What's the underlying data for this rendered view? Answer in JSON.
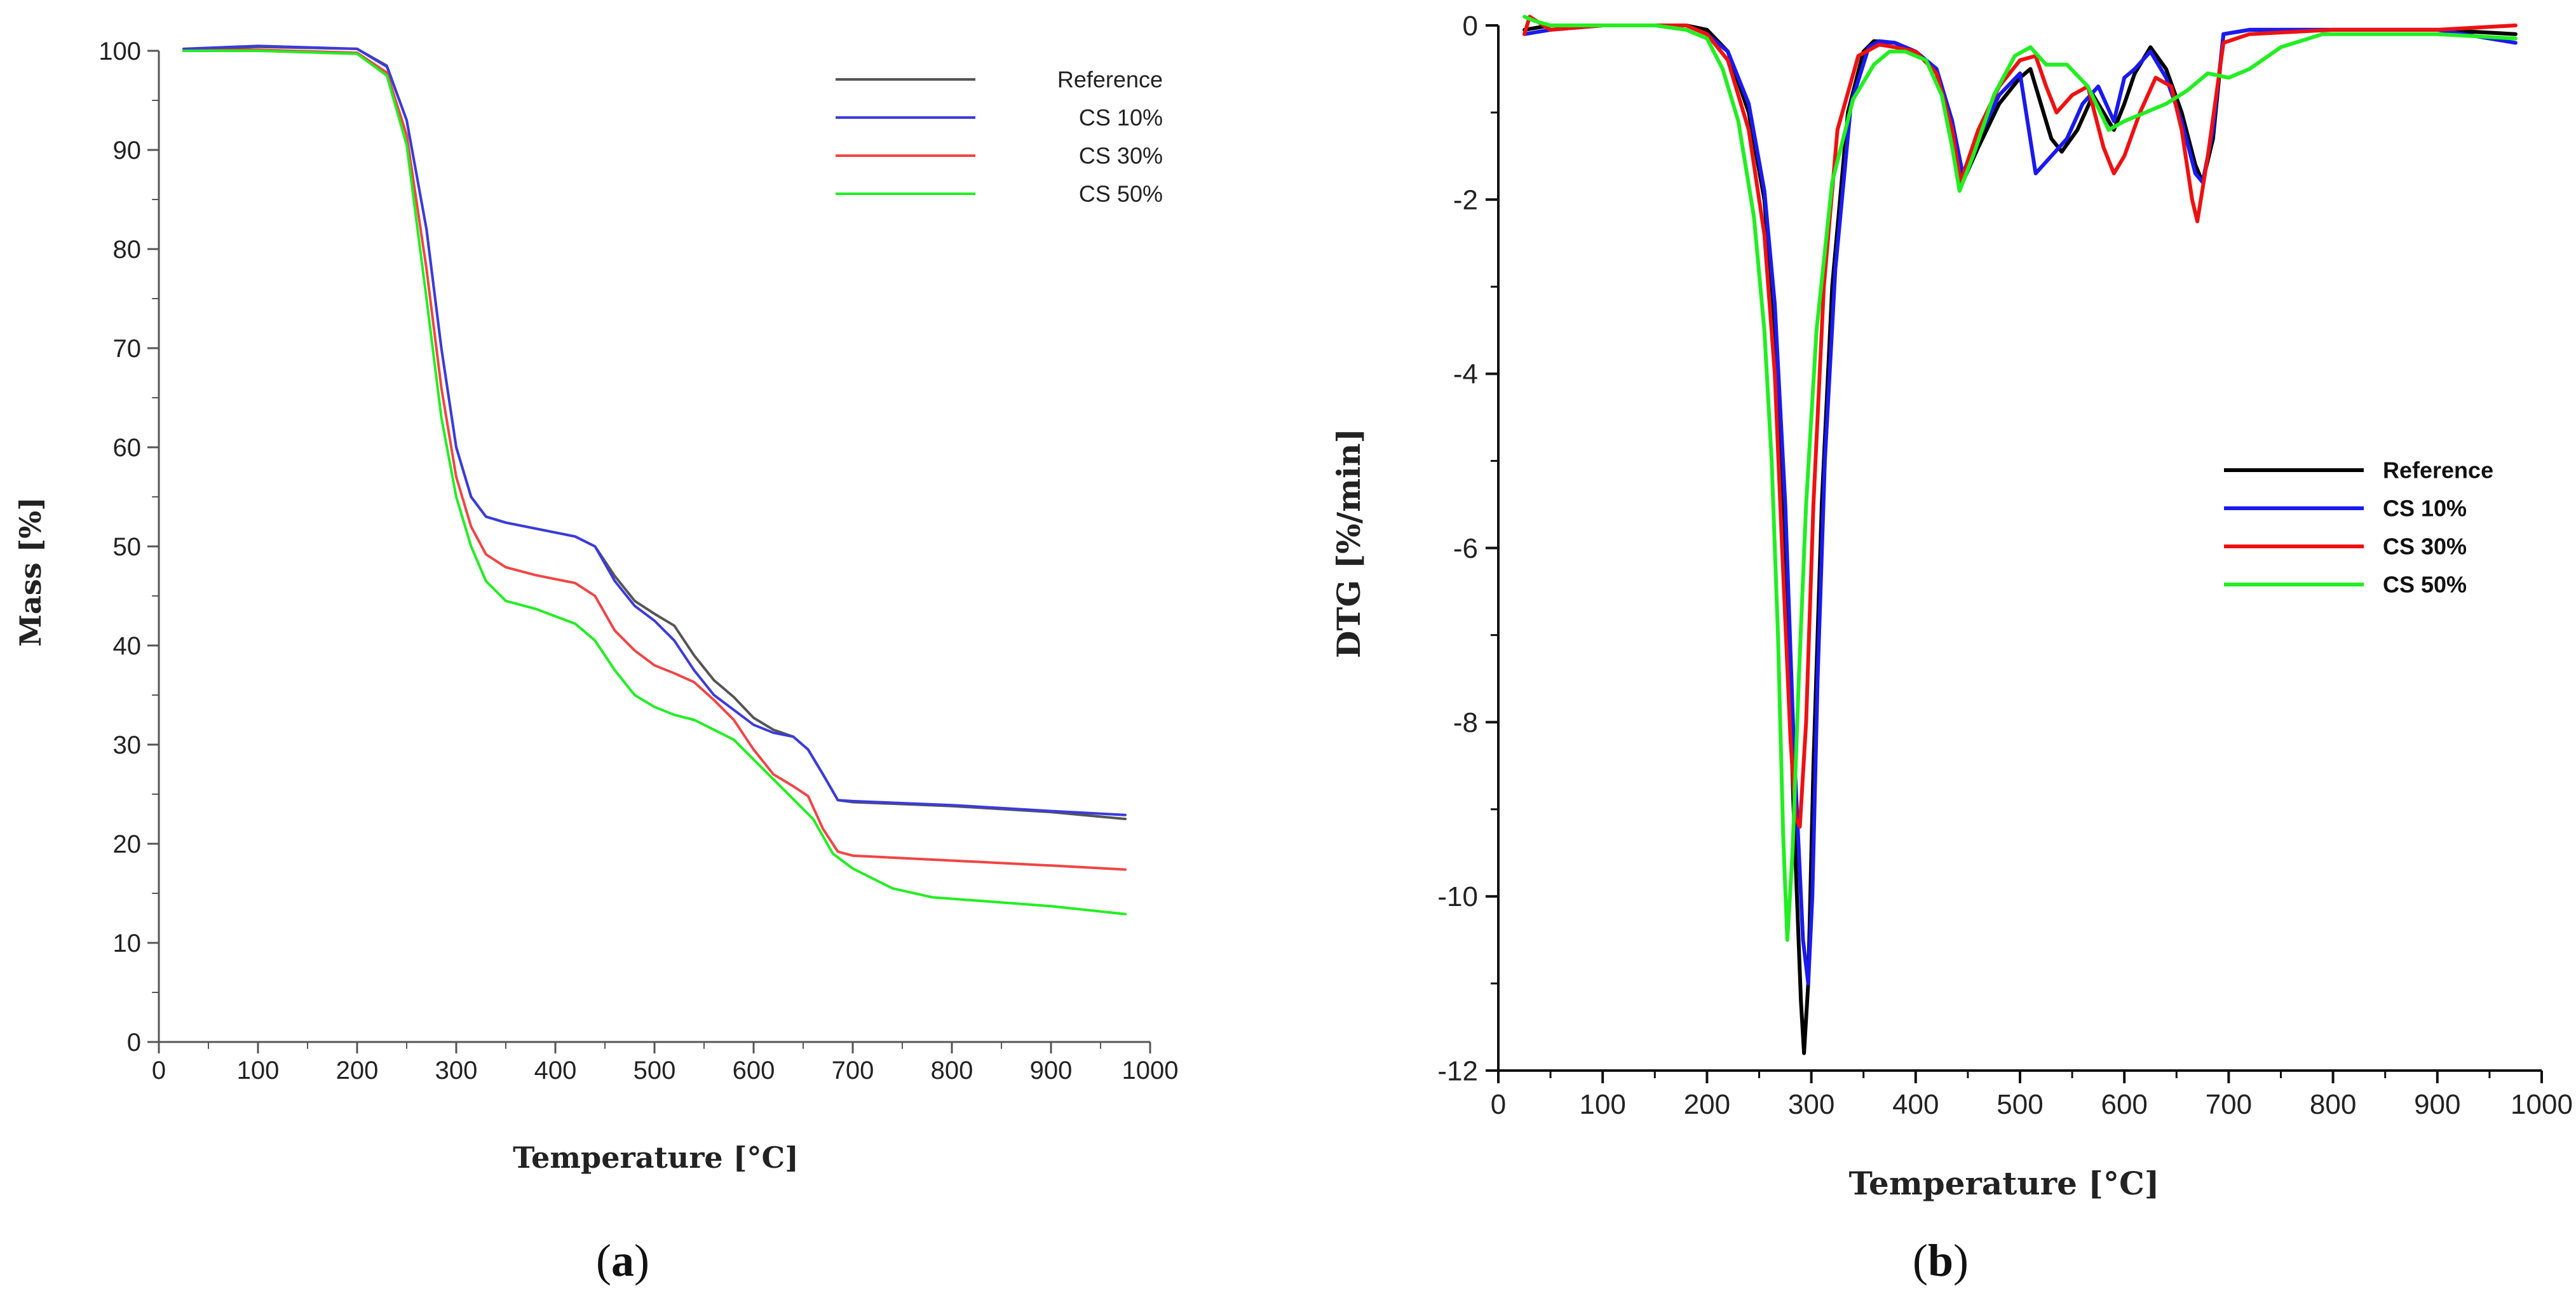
{
  "chart_data": [
    {
      "type": "line",
      "panel_label": "a",
      "xlabel": "Temperature [°C]",
      "ylabel": "Mass [%]",
      "xlim": [
        0,
        1000
      ],
      "ylim": [
        0,
        100
      ],
      "xticks": [
        0,
        100,
        200,
        300,
        400,
        500,
        600,
        700,
        800,
        900,
        1000
      ],
      "yticks": [
        0,
        10,
        20,
        30,
        40,
        50,
        60,
        70,
        80,
        90,
        100
      ],
      "legend_position": "top-right",
      "series": [
        {
          "name": "Reference",
          "color": "#555555",
          "x": [
            25,
            100,
            200,
            230,
            250,
            270,
            285,
            300,
            315,
            330,
            350,
            380,
            420,
            440,
            460,
            480,
            500,
            520,
            540,
            560,
            580,
            600,
            620,
            640,
            655,
            670,
            685,
            700,
            800,
            900,
            975
          ],
          "y": [
            100,
            100.4,
            100.2,
            98.5,
            93,
            82,
            70,
            60,
            55,
            53,
            52.4,
            51.8,
            51,
            50,
            47,
            44.5,
            43.2,
            42,
            39,
            36.5,
            34.8,
            32.7,
            31.5,
            30.8,
            29.5,
            27,
            24.4,
            24.2,
            23.8,
            23.2,
            22.5
          ]
        },
        {
          "name": "CS 10%",
          "color": "#3b3bdc",
          "x": [
            25,
            100,
            200,
            230,
            250,
            270,
            285,
            300,
            315,
            330,
            350,
            380,
            420,
            440,
            460,
            480,
            500,
            520,
            540,
            560,
            580,
            600,
            620,
            640,
            655,
            670,
            685,
            700,
            800,
            900,
            975
          ],
          "y": [
            100.2,
            100.5,
            100.2,
            98.4,
            93,
            82,
            70,
            60,
            55,
            53,
            52.4,
            51.8,
            51,
            50,
            46.5,
            44,
            42.5,
            40.5,
            37.5,
            35,
            33.5,
            32,
            31.2,
            30.8,
            29.5,
            27,
            24.4,
            24.3,
            23.9,
            23.3,
            22.9
          ]
        },
        {
          "name": "CS 30%",
          "color": "#f04545",
          "x": [
            25,
            100,
            200,
            230,
            250,
            270,
            285,
            300,
            315,
            330,
            350,
            380,
            420,
            440,
            460,
            480,
            500,
            520,
            540,
            560,
            580,
            600,
            620,
            640,
            655,
            670,
            685,
            700,
            800,
            900,
            975
          ],
          "y": [
            100,
            100.1,
            99.8,
            97.8,
            91.5,
            78,
            66,
            57,
            52,
            49.2,
            47.9,
            47.1,
            46.3,
            45,
            41.5,
            39.5,
            38,
            37.2,
            36.3,
            34.5,
            32.5,
            29.5,
            27,
            25.8,
            24.8,
            21.5,
            19.2,
            18.8,
            18.3,
            17.8,
            17.4
          ]
        },
        {
          "name": "CS 50%",
          "color": "#22ee22",
          "x": [
            25,
            100,
            200,
            230,
            250,
            270,
            285,
            300,
            315,
            330,
            350,
            380,
            420,
            440,
            460,
            480,
            500,
            520,
            540,
            560,
            580,
            600,
            620,
            640,
            660,
            680,
            700,
            740,
            780,
            820,
            900,
            975
          ],
          "y": [
            100,
            100,
            99.7,
            97.5,
            90.5,
            75,
            63,
            55,
            50,
            46.5,
            44.5,
            43.7,
            42.2,
            40.5,
            37.5,
            35,
            33.8,
            33,
            32.5,
            31.5,
            30.5,
            28.5,
            26.5,
            24.5,
            22.5,
            19,
            17.5,
            15.5,
            14.6,
            14.3,
            13.7,
            12.9
          ]
        }
      ]
    },
    {
      "type": "line",
      "panel_label": "b",
      "xlabel": "Temperature [°C]",
      "ylabel": "DTG [%/min]",
      "xlim": [
        0,
        1000
      ],
      "ylim": [
        -12,
        0
      ],
      "xticks": [
        0,
        100,
        200,
        300,
        400,
        500,
        600,
        700,
        800,
        900,
        1000
      ],
      "yticks": [
        0,
        -2,
        -4,
        -6,
        -8,
        -10,
        -12
      ],
      "legend_position": "center-right",
      "series": [
        {
          "name": "Reference",
          "color": "#000000",
          "x": [
            25,
            50,
            100,
            150,
            180,
            200,
            220,
            240,
            255,
            265,
            275,
            283,
            290,
            293,
            297,
            302,
            310,
            320,
            335,
            350,
            360,
            380,
            400,
            420,
            435,
            445,
            460,
            480,
            500,
            510,
            520,
            530,
            540,
            555,
            570,
            590,
            600,
            610,
            625,
            640,
            655,
            668,
            675,
            685,
            695,
            720,
            800,
            900,
            975
          ],
          "y": [
            -0.05,
            0,
            0,
            0,
            0,
            -0.05,
            -0.3,
            -1,
            -2,
            -3.5,
            -6,
            -9,
            -11.2,
            -11.8,
            -11,
            -8.5,
            -5.5,
            -3,
            -1,
            -0.3,
            -0.18,
            -0.2,
            -0.3,
            -0.5,
            -1.1,
            -1.8,
            -1.4,
            -0.9,
            -0.6,
            -0.5,
            -0.9,
            -1.3,
            -1.45,
            -1.2,
            -0.8,
            -1.2,
            -0.9,
            -0.55,
            -0.25,
            -0.5,
            -1,
            -1.6,
            -1.8,
            -1.3,
            -0.1,
            -0.05,
            -0.05,
            -0.05,
            -0.1
          ]
        },
        {
          "name": "CS 10%",
          "color": "#1a1aee",
          "x": [
            25,
            50,
            100,
            150,
            180,
            200,
            220,
            240,
            255,
            265,
            275,
            283,
            292,
            297,
            301,
            306,
            313,
            323,
            338,
            355,
            365,
            380,
            400,
            420,
            435,
            445,
            460,
            480,
            500,
            515,
            530,
            545,
            560,
            575,
            590,
            600,
            610,
            625,
            640,
            655,
            668,
            675,
            685,
            695,
            720,
            800,
            900,
            975
          ],
          "y": [
            -0.1,
            -0.05,
            0,
            0,
            0,
            -0.1,
            -0.3,
            -0.9,
            -1.9,
            -3.2,
            -5.5,
            -8.2,
            -10.5,
            -11,
            -10,
            -7.5,
            -5,
            -2.8,
            -0.9,
            -0.25,
            -0.18,
            -0.2,
            -0.3,
            -0.5,
            -1.1,
            -1.7,
            -1.3,
            -0.8,
            -0.55,
            -1.7,
            -1.5,
            -1.3,
            -0.9,
            -0.7,
            -1.1,
            -0.6,
            -0.5,
            -0.3,
            -0.6,
            -1.1,
            -1.7,
            -1.8,
            -1.2,
            -0.1,
            -0.05,
            -0.05,
            -0.05,
            -0.2
          ]
        },
        {
          "name": "CS 30%",
          "color": "#ee1111",
          "x": [
            25,
            30,
            50,
            100,
            150,
            180,
            200,
            220,
            240,
            255,
            265,
            272,
            280,
            285,
            289,
            295,
            302,
            312,
            325,
            345,
            365,
            380,
            400,
            420,
            435,
            443,
            460,
            480,
            500,
            515,
            525,
            535,
            550,
            565,
            580,
            590,
            600,
            615,
            630,
            645,
            655,
            665,
            670,
            680,
            695,
            720,
            800,
            900,
            975
          ],
          "y": [
            -0.1,
            0.1,
            -0.05,
            0,
            0,
            0,
            -0.1,
            -0.4,
            -1.2,
            -2.4,
            -4,
            -6,
            -8.2,
            -9.1,
            -9.2,
            -8,
            -5.5,
            -3,
            -1.2,
            -0.35,
            -0.22,
            -0.25,
            -0.3,
            -0.55,
            -1.2,
            -1.8,
            -1.2,
            -0.7,
            -0.4,
            -0.35,
            -0.7,
            -1,
            -0.8,
            -0.7,
            -1.4,
            -1.7,
            -1.5,
            -1,
            -0.6,
            -0.7,
            -1.2,
            -2,
            -2.25,
            -1.5,
            -0.2,
            -0.1,
            -0.05,
            -0.05,
            0
          ]
        },
        {
          "name": "CS 50%",
          "color": "#22ee22",
          "x": [
            25,
            35,
            50,
            100,
            150,
            180,
            200,
            215,
            230,
            245,
            255,
            262,
            268,
            273,
            277,
            282,
            288,
            295,
            305,
            320,
            340,
            360,
            375,
            390,
            410,
            425,
            435,
            442,
            455,
            475,
            495,
            510,
            525,
            545,
            565,
            585,
            600,
            620,
            640,
            660,
            680,
            700,
            720,
            750,
            790,
            850,
            900,
            975
          ],
          "y": [
            0.1,
            0.05,
            0,
            0,
            0,
            -0.05,
            -0.15,
            -0.5,
            -1.1,
            -2.2,
            -3.5,
            -5,
            -7,
            -9.3,
            -10.5,
            -9.5,
            -7.5,
            -5.5,
            -3.5,
            -1.8,
            -0.85,
            -0.45,
            -0.3,
            -0.3,
            -0.4,
            -0.8,
            -1.4,
            -1.9,
            -1.5,
            -0.8,
            -0.35,
            -0.25,
            -0.45,
            -0.45,
            -0.7,
            -1.2,
            -1.1,
            -1,
            -0.9,
            -0.75,
            -0.55,
            -0.6,
            -0.5,
            -0.25,
            -0.1,
            -0.1,
            -0.1,
            -0.15
          ]
        }
      ]
    }
  ]
}
